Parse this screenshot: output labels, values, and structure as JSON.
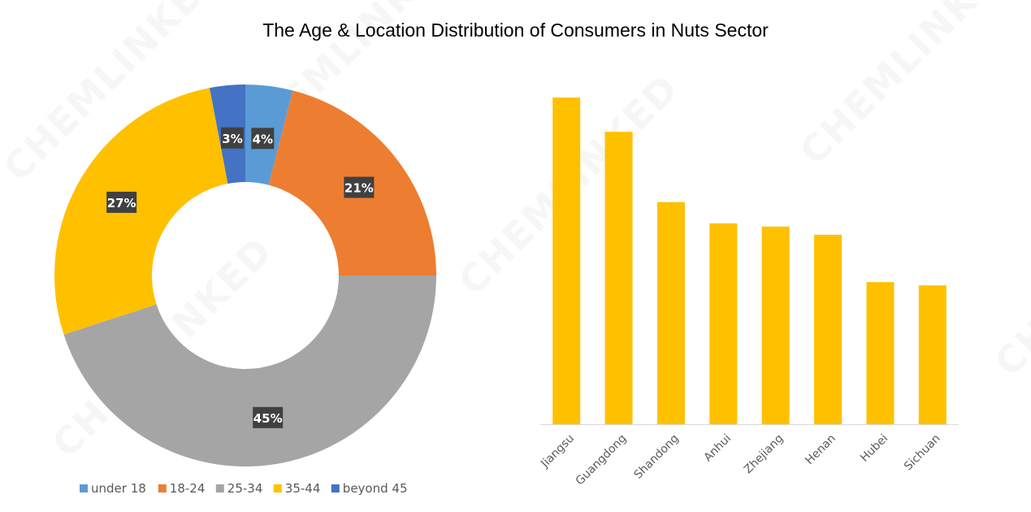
{
  "title": "The Age & Location Distribution of Consumers in Nuts Sector",
  "watermark_text": "CHEMLINKED",
  "chart_data": [
    {
      "type": "pie",
      "donut": true,
      "slices": [
        {
          "label": "under 18",
          "value": 4,
          "display": "4%",
          "color": "#5B9BD5"
        },
        {
          "label": "18-24",
          "value": 21,
          "display": "21%",
          "color": "#ED7D31"
        },
        {
          "label": "25-34",
          "value": 45,
          "display": "45%",
          "color": "#A5A5A5"
        },
        {
          "label": "35-44",
          "value": 27,
          "display": "27%",
          "color": "#FFC000"
        },
        {
          "label": "beyond 45",
          "value": 3,
          "display": "3%",
          "color": "#4472C4"
        }
      ],
      "legend_position": "bottom"
    },
    {
      "type": "bar",
      "categories": [
        "Jiangsu",
        "Guangdong",
        "Shandong",
        "Anhui",
        "Zhejiang",
        "Henan",
        "Hubei",
        "Sichuan"
      ],
      "values": [
        100,
        89.5,
        68,
        61.5,
        60.5,
        58,
        43.5,
        42.5
      ],
      "color": "#FFC000",
      "ylim": [
        0,
        100
      ],
      "grid": false,
      "y_axis_visible": false
    }
  ]
}
